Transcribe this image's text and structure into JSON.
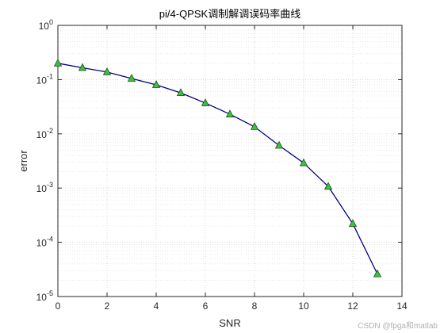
{
  "chart_data": {
    "type": "line",
    "title": "pi/4-QPSK调制解调误码率曲线",
    "xlabel": "SNR",
    "ylabel": "error",
    "xlim": [
      0,
      14
    ],
    "ylim": [
      1e-05,
      1
    ],
    "yscale": "log",
    "grid": true,
    "minor_grid": true,
    "x_ticks": [
      "0",
      "2",
      "4",
      "6",
      "8",
      "10",
      "12",
      "14"
    ],
    "y_ticks": [
      {
        "base": "10",
        "exp": "0"
      },
      {
        "base": "10",
        "exp": "-1"
      },
      {
        "base": "10",
        "exp": "-2"
      },
      {
        "base": "10",
        "exp": "-3"
      },
      {
        "base": "10",
        "exp": "-4"
      },
      {
        "base": "10",
        "exp": "-5"
      }
    ],
    "series": [
      {
        "x": [
          0,
          1,
          2,
          3,
          4,
          5,
          6,
          7,
          8,
          9,
          10,
          11,
          12,
          13
        ],
        "values": [
          0.2,
          0.165,
          0.138,
          0.105,
          0.08,
          0.057,
          0.037,
          0.023,
          0.0135,
          0.0061,
          0.0029,
          0.00107,
          0.00022,
          2.6e-05
        ],
        "line_color": "#000080",
        "marker": "triangle",
        "marker_color": "#3fbf3f"
      }
    ]
  },
  "watermark": "CSDN @fpga和matlab"
}
